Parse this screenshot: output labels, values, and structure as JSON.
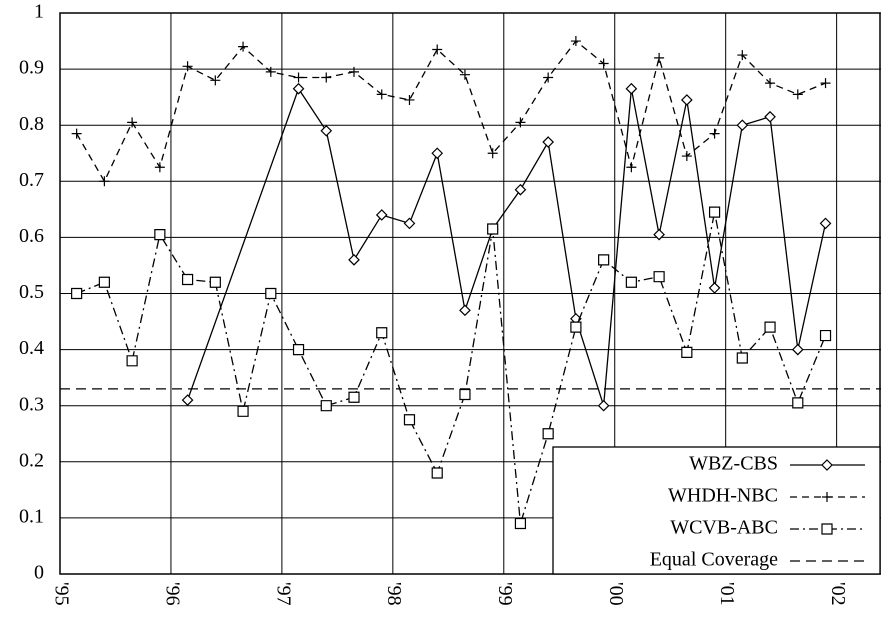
{
  "chart_data": {
    "type": "line",
    "xlim": [
      1995,
      2002.4
    ],
    "xticks": [
      {
        "value": 1995,
        "label": "'95"
      },
      {
        "value": 1996,
        "label": "'96"
      },
      {
        "value": 1997,
        "label": "'97"
      },
      {
        "value": 1998,
        "label": "'98"
      },
      {
        "value": 1999,
        "label": "'99"
      },
      {
        "value": 2000,
        "label": "'00"
      },
      {
        "value": 2001,
        "label": "'01"
      },
      {
        "value": 2002,
        "label": "'02"
      }
    ],
    "ylim": [
      0,
      1
    ],
    "yticks": [
      0,
      0.1,
      0.2,
      0.3,
      0.4,
      0.5,
      0.6,
      0.7,
      0.8,
      0.9,
      1
    ],
    "grid": true,
    "legend": "lower right",
    "series": [
      {
        "name": "WBZ-CBS",
        "color": "#000000",
        "style": "solid",
        "marker": "diamond",
        "x": [
          1996.15,
          1997.15,
          1997.4,
          1997.65,
          1997.9,
          1998.15,
          1998.4,
          1998.65,
          1998.9,
          1999.15,
          1999.4,
          1999.65,
          1999.9,
          2000.15,
          2000.4,
          2000.65,
          2000.9,
          2001.15,
          2001.4,
          2001.65,
          2001.9
        ],
        "values": [
          0.31,
          0.865,
          0.79,
          0.56,
          0.64,
          0.625,
          0.75,
          0.47,
          0.615,
          0.685,
          0.77,
          0.455,
          0.3,
          0.865,
          0.605,
          0.845,
          0.51,
          0.8,
          0.815,
          0.4,
          0.625
        ]
      },
      {
        "name": "WHDH-NBC",
        "color": "#000000",
        "style": "dashed",
        "marker": "plus",
        "x": [
          1995.15,
          1995.4,
          1995.65,
          1995.9,
          1996.15,
          1996.4,
          1996.65,
          1996.9,
          1997.15,
          1997.4,
          1997.65,
          1997.9,
          1998.15,
          1998.4,
          1998.65,
          1998.9,
          1999.15,
          1999.4,
          1999.65,
          1999.9,
          2000.15,
          2000.4,
          2000.65,
          2000.9,
          2001.15,
          2001.4,
          2001.65,
          2001.9
        ],
        "values": [
          0.785,
          0.7,
          0.805,
          0.725,
          0.905,
          0.88,
          0.94,
          0.895,
          0.885,
          0.885,
          0.895,
          0.855,
          0.845,
          0.935,
          0.89,
          0.75,
          0.805,
          0.885,
          0.95,
          0.91,
          0.725,
          0.92,
          0.745,
          0.785,
          0.925,
          0.875,
          0.855,
          0.875
        ]
      },
      {
        "name": "WCVB-ABC",
        "color": "#000000",
        "style": "dashdot",
        "marker": "square",
        "x": [
          1995.15,
          1995.4,
          1995.65,
          1995.9,
          1996.15,
          1996.4,
          1996.65,
          1996.9,
          1997.15,
          1997.4,
          1997.65,
          1997.9,
          1998.15,
          1998.4,
          1998.65,
          1998.9,
          1999.15,
          1999.4,
          1999.65,
          1999.9,
          2000.15,
          2000.4,
          2000.65,
          2000.9,
          2001.15,
          2001.4,
          2001.65,
          2001.9
        ],
        "values": [
          0.5,
          0.52,
          0.38,
          0.605,
          0.525,
          0.52,
          0.29,
          0.5,
          0.4,
          0.3,
          0.315,
          0.43,
          0.275,
          0.18,
          0.32,
          0.615,
          0.09,
          0.25,
          0.44,
          0.56,
          0.52,
          0.53,
          0.395,
          0.645,
          0.385,
          0.44,
          0.305,
          0.425
        ]
      }
    ],
    "reference_line": {
      "name": "Equal Coverage",
      "value": 0.33,
      "color": "#000000",
      "style": "longdash"
    }
  }
}
